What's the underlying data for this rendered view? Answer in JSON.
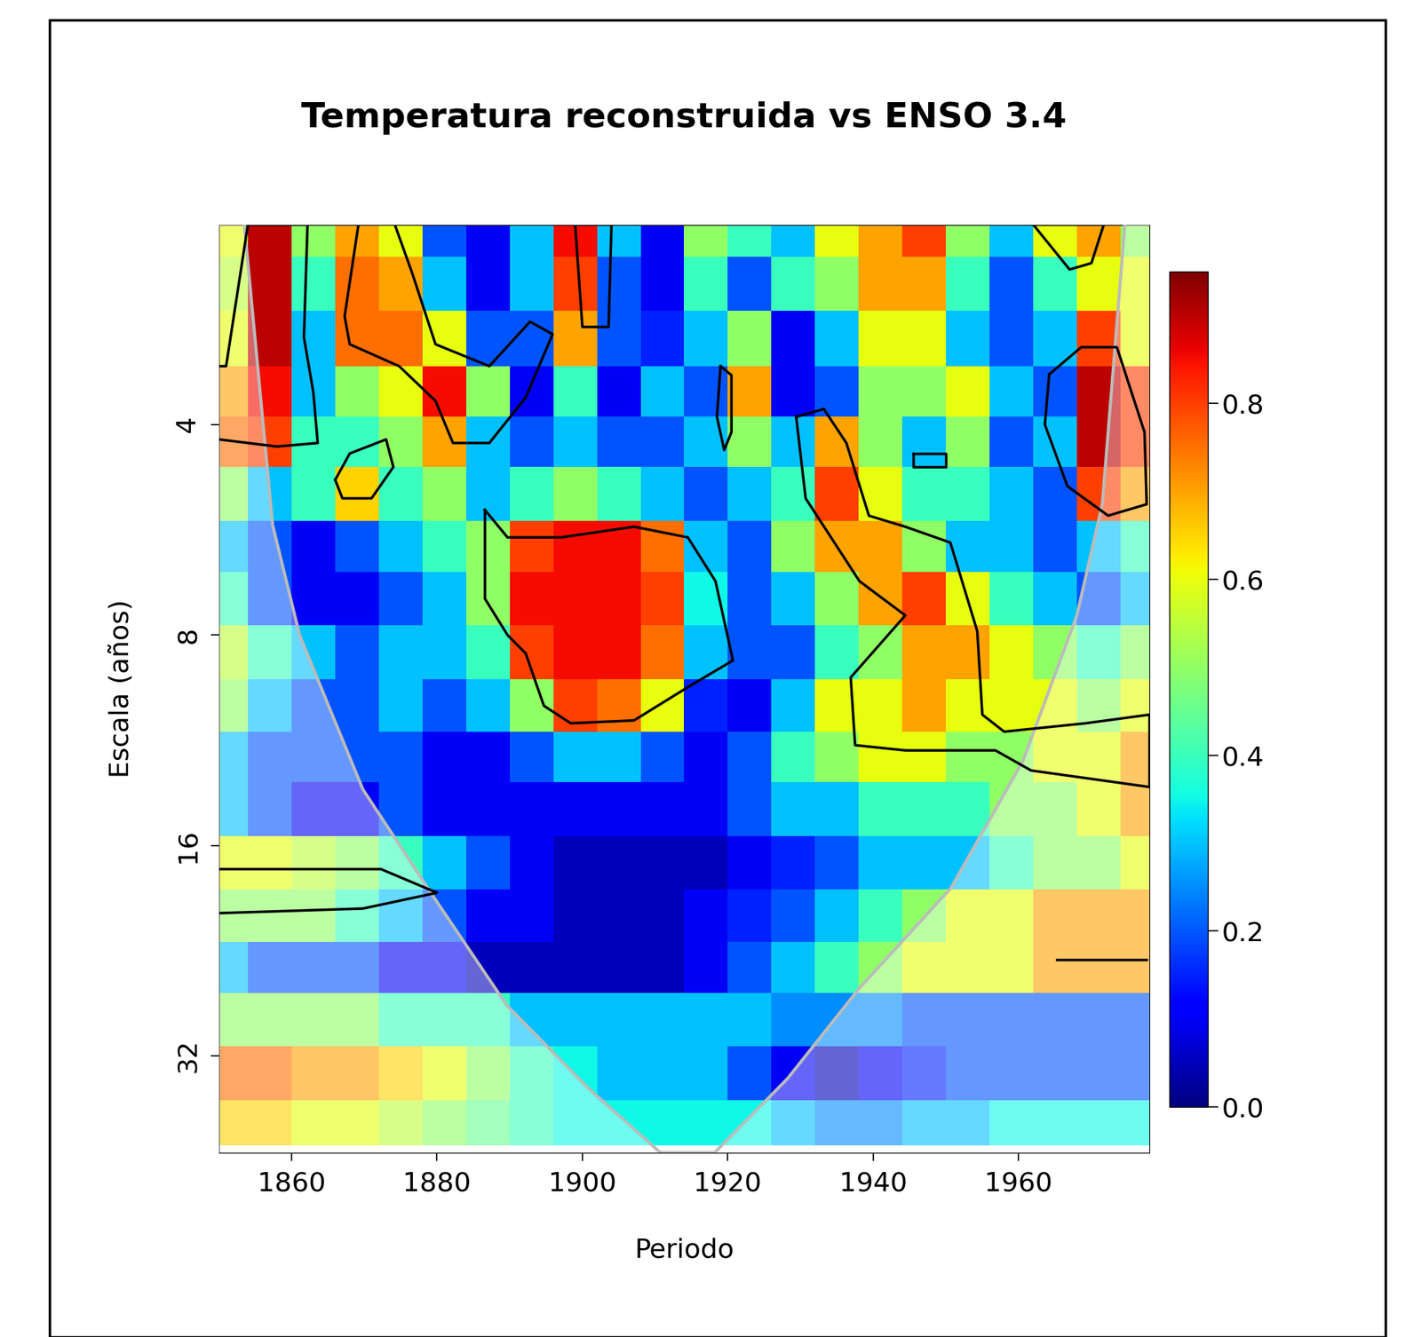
{
  "chart_data": {
    "type": "heatmap",
    "title": "Temperatura reconstruida vs ENSO 3.4",
    "x_label": "Periodo",
    "y_label": "Escala (años)",
    "log": "y",
    "color": "jet",
    "xlim": [
      1850,
      1978
    ],
    "xticks": [
      1860,
      1880,
      1900,
      1920,
      1940,
      1960
    ],
    "ylim": [
      44,
      2.07
    ],
    "yticks": [
      4,
      8,
      16,
      32
    ],
    "x": [
      1851,
      1857,
      1863,
      1869,
      1875,
      1881,
      1887,
      1893,
      1899,
      1905,
      1911,
      1917,
      1923,
      1929,
      1935,
      1941,
      1947,
      1953,
      1959,
      1965,
      1971,
      1977
    ],
    "y": [
      2.1,
      2.5,
      3,
      3.6,
      4.2,
      5,
      6,
      7,
      8.5,
      10,
      12,
      14,
      17,
      20,
      24,
      28,
      34,
      40
    ],
    "cells": [
      [
        0.6,
        0.9,
        0.5,
        0.7,
        0.6,
        0.2,
        0.1,
        0.3,
        0.85,
        0.3,
        0.1,
        0.5,
        0.4,
        0.3,
        0.6,
        0.7,
        0.8,
        0.5,
        0.3,
        0.6,
        0.7,
        0.5
      ],
      [
        0.55,
        0.9,
        0.4,
        0.75,
        0.7,
        0.3,
        0.1,
        0.3,
        0.8,
        0.2,
        0.1,
        0.4,
        0.2,
        0.4,
        0.5,
        0.7,
        0.7,
        0.4,
        0.2,
        0.4,
        0.6,
        0.6
      ],
      [
        0.6,
        0.9,
        0.3,
        0.75,
        0.75,
        0.6,
        0.2,
        0.2,
        0.7,
        0.2,
        0.15,
        0.3,
        0.5,
        0.1,
        0.3,
        0.6,
        0.6,
        0.3,
        0.2,
        0.3,
        0.8,
        0.6
      ],
      [
        0.7,
        0.85,
        0.3,
        0.5,
        0.6,
        0.85,
        0.5,
        0.1,
        0.4,
        0.1,
        0.3,
        0.2,
        0.7,
        0.1,
        0.2,
        0.5,
        0.5,
        0.6,
        0.3,
        0.2,
        0.9,
        0.8
      ],
      [
        0.75,
        0.8,
        0.4,
        0.4,
        0.5,
        0.7,
        0.3,
        0.2,
        0.3,
        0.2,
        0.2,
        0.3,
        0.5,
        0.3,
        0.7,
        0.5,
        0.3,
        0.5,
        0.2,
        0.3,
        0.9,
        0.8
      ],
      [
        0.5,
        0.3,
        0.4,
        0.65,
        0.4,
        0.5,
        0.3,
        0.4,
        0.5,
        0.4,
        0.3,
        0.2,
        0.3,
        0.4,
        0.8,
        0.6,
        0.4,
        0.4,
        0.3,
        0.2,
        0.8,
        0.7
      ],
      [
        0.3,
        0.2,
        0.1,
        0.2,
        0.3,
        0.4,
        0.5,
        0.8,
        0.85,
        0.85,
        0.75,
        0.3,
        0.2,
        0.5,
        0.7,
        0.7,
        0.5,
        0.3,
        0.3,
        0.2,
        0.3,
        0.4
      ],
      [
        0.4,
        0.2,
        0.1,
        0.1,
        0.2,
        0.3,
        0.5,
        0.85,
        0.85,
        0.85,
        0.8,
        0.35,
        0.2,
        0.3,
        0.5,
        0.7,
        0.8,
        0.6,
        0.4,
        0.3,
        0.2,
        0.3
      ],
      [
        0.55,
        0.4,
        0.3,
        0.2,
        0.3,
        0.3,
        0.4,
        0.8,
        0.85,
        0.85,
        0.75,
        0.3,
        0.2,
        0.2,
        0.4,
        0.5,
        0.7,
        0.7,
        0.6,
        0.5,
        0.4,
        0.5
      ],
      [
        0.5,
        0.3,
        0.2,
        0.2,
        0.3,
        0.2,
        0.3,
        0.5,
        0.8,
        0.75,
        0.6,
        0.15,
        0.1,
        0.3,
        0.6,
        0.6,
        0.7,
        0.6,
        0.6,
        0.6,
        0.5,
        0.6
      ],
      [
        0.3,
        0.2,
        0.2,
        0.2,
        0.2,
        0.1,
        0.1,
        0.2,
        0.3,
        0.3,
        0.2,
        0.1,
        0.2,
        0.4,
        0.5,
        0.6,
        0.6,
        0.5,
        0.5,
        0.6,
        0.6,
        0.7
      ],
      [
        0.3,
        0.2,
        0.1,
        0.1,
        0.2,
        0.1,
        0.1,
        0.1,
        0.1,
        0.1,
        0.1,
        0.1,
        0.2,
        0.3,
        0.3,
        0.4,
        0.4,
        0.4,
        0.5,
        0.5,
        0.6,
        0.7
      ],
      [
        0.6,
        0.6,
        0.55,
        0.5,
        0.4,
        0.3,
        0.2,
        0.1,
        0.05,
        0.05,
        0.05,
        0.05,
        0.1,
        0.15,
        0.2,
        0.3,
        0.3,
        0.3,
        0.4,
        0.5,
        0.5,
        0.6
      ],
      [
        0.5,
        0.5,
        0.5,
        0.4,
        0.3,
        0.2,
        0.1,
        0.1,
        0.05,
        0.05,
        0.05,
        0.1,
        0.15,
        0.2,
        0.3,
        0.4,
        0.5,
        0.6,
        0.6,
        0.7,
        0.7,
        0.7
      ],
      [
        0.3,
        0.2,
        0.2,
        0.2,
        0.1,
        0.1,
        0.05,
        0.05,
        0.05,
        0.05,
        0.05,
        0.1,
        0.2,
        0.3,
        0.4,
        0.5,
        0.6,
        0.6,
        0.6,
        0.7,
        0.7,
        0.7
      ],
      [
        0.5,
        0.5,
        0.5,
        0.5,
        0.4,
        0.4,
        0.4,
        0.3,
        0.3,
        0.3,
        0.3,
        0.3,
        0.3,
        0.25,
        0.25,
        0.25,
        0.2,
        0.2,
        0.2,
        0.2,
        0.2,
        0.2
      ],
      [
        0.75,
        0.75,
        0.7,
        0.7,
        0.65,
        0.6,
        0.5,
        0.4,
        0.35,
        0.3,
        0.3,
        0.3,
        0.2,
        0.1,
        0.05,
        0.1,
        0.15,
        0.2,
        0.2,
        0.2,
        0.2,
        0.2
      ],
      [
        0.65,
        0.65,
        0.6,
        0.6,
        0.55,
        0.5,
        0.45,
        0.4,
        0.35,
        0.35,
        0.35,
        0.35,
        0.35,
        0.3,
        0.25,
        0.25,
        0.3,
        0.3,
        0.35,
        0.35,
        0.35,
        0.35
      ]
    ],
    "colorbar": {
      "range": [
        0,
        0.95
      ],
      "ticks": [
        {
          "value": 0,
          "label": "0.0"
        },
        {
          "value": 0.2,
          "label": "0.2"
        },
        {
          "value": 0.4,
          "label": "0.4"
        },
        {
          "value": 0.6,
          "label": "0.6"
        },
        {
          "value": 0.8,
          "label": "0.8"
        }
      ]
    },
    "cone_of_influence": {
      "x": [
        1853.5,
        1857.4,
        1861.1,
        1869.8,
        1879.6,
        1889.6,
        1900.8,
        1910.7,
        1918.2,
        1928.2,
        1938.1,
        1950.7,
        1960.6,
        1968,
        1971.5,
        1974.6
      ],
      "y": [
        2.07,
        5.57,
        8,
        13.3,
        19,
        27.1,
        35.6,
        44,
        44,
        34.5,
        25.6,
        18.4,
        12.1,
        7.5,
        5.2,
        2.07
      ]
    },
    "significance_contours": [
      {
        "x": [
          1886.6,
          1889.7,
          1897.1,
          1907.1,
          1914.5,
          1918.3,
          1920.7,
          1914.5,
          1907.1,
          1898.4,
          1894.7,
          1892.2,
          1889.7,
          1886.6,
          1886.6
        ],
        "y": [
          5.3,
          5.8,
          5.8,
          5.6,
          5.8,
          6.7,
          8.7,
          9.5,
          10.6,
          10.7,
          10.1,
          8.5,
          8,
          7.1,
          5.3
        ]
      },
      {
        "x": [
          1850,
          1851,
          1854,
          1862.2,
          1861.7,
          1863,
          1863.6,
          1858,
          1850
        ],
        "y": [
          3.3,
          3.3,
          2.07,
          2.07,
          3.0,
          3.6,
          4.25,
          4.3,
          4.2
        ]
      },
      {
        "x": [
          1869.2,
          1867.3,
          1868,
          1874.8,
          1879.8,
          1882.2,
          1887.2,
          1892.2,
          1895.9,
          1892.8,
          1887.2,
          1879.8,
          1876.6,
          1874.2
        ],
        "y": [
          2.07,
          2.8,
          3.07,
          3.3,
          3.7,
          4.25,
          4.25,
          3.66,
          2.97,
          2.85,
          3.3,
          3.07,
          2.43,
          2.07
        ]
      },
      {
        "x": [
          1866,
          1868,
          1873,
          1874,
          1871,
          1867,
          1866
        ],
        "y": [
          4.8,
          4.4,
          4.2,
          4.6,
          5.1,
          5.1,
          4.8
        ]
      },
      {
        "x": [
          1929.4,
          1933.2,
          1936.3,
          1939.4,
          1944.4,
          1950.6,
          1954.3,
          1955,
          1958,
          1969.2,
          1978,
          1978,
          1961.7,
          1956.8,
          1944.4,
          1937.5,
          1936.9,
          1944.4,
          1938.1,
          1930.7,
          1929.4
        ],
        "y": [
          3.9,
          3.8,
          4.25,
          5.4,
          5.6,
          5.9,
          7.9,
          10.4,
          11,
          10.7,
          10.4,
          13.2,
          12.5,
          11.7,
          11.7,
          11.5,
          9.2,
          7.5,
          6.7,
          5.1,
          3.9
        ]
      },
      {
        "x": [
          1964.2,
          1968.6,
          1973.5,
          1977.3,
          1977.6,
          1972.3,
          1966.7,
          1963.6,
          1964.2
        ],
        "y": [
          3.39,
          3.1,
          3.1,
          4.1,
          5.2,
          5.4,
          4.9,
          4.0,
          3.39
        ]
      },
      {
        "x": [
          1850,
          1872.3,
          1880,
          1869.8,
          1850
        ],
        "y": [
          17.3,
          17.3,
          18.7,
          19.7,
          20
        ]
      },
      {
        "x": [
          1962,
          1971.7,
          1970,
          1967,
          1962
        ],
        "y": [
          2.07,
          2.07,
          2.35,
          2.4,
          2.07
        ]
      },
      {
        "x": [
          1919,
          1920.5,
          1920.5,
          1919.5,
          1918.5,
          1919
        ],
        "y": [
          3.3,
          3.4,
          4.1,
          4.35,
          3.9,
          3.3
        ]
      },
      {
        "x": [
          1945.5,
          1950,
          1950,
          1945.5,
          1945.5
        ],
        "y": [
          4.4,
          4.4,
          4.6,
          4.6,
          4.4
        ]
      },
      {
        "x": [
          1899,
          1904,
          1903.6,
          1900,
          1899
        ],
        "y": [
          2.07,
          2.07,
          2.9,
          2.9,
          2.07
        ]
      },
      {
        "x": [
          1965.2,
          1977.6
        ],
        "y": [
          23.3,
          23.3
        ]
      }
    ]
  }
}
